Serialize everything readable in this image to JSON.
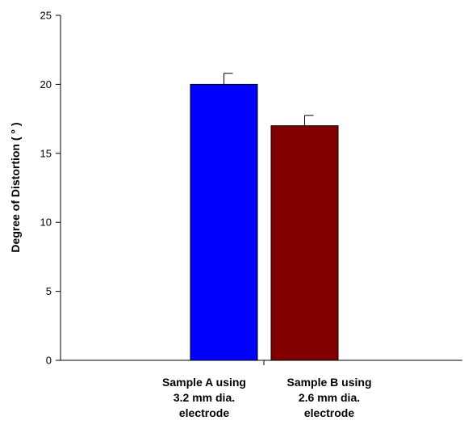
{
  "chart_data": {
    "type": "bar",
    "title": "",
    "xlabel": "",
    "ylabel": "Degree of Distortion ( ° )",
    "ylim": [
      0,
      25
    ],
    "yticks": [
      "0",
      "5",
      "10",
      "15",
      "20",
      "25"
    ],
    "categories": [
      [
        "Sample A using",
        "3.2 mm dia.",
        "electrode"
      ],
      [
        "Sample B using",
        "2.6 mm dia.",
        "electrode"
      ]
    ],
    "values": [
      20,
      17
    ],
    "errors": [
      0.8,
      0.75
    ],
    "colors": [
      "#0000ff",
      "#800000"
    ],
    "grid": false,
    "legend": "none"
  }
}
